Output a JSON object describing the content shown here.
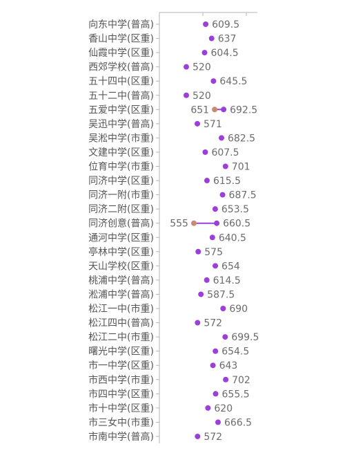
{
  "chart_data": {
    "type": "dumbbell",
    "title": "",
    "xlabel": "",
    "ylabel": "",
    "xlim": [
      500,
      720
    ],
    "grid": false,
    "legend": "none",
    "colors": {
      "current": "#9b3fdb",
      "previous": "#c98a73",
      "connector": "#9b3fdb"
    },
    "rows": [
      {
        "category": "向东中学(普高)",
        "value": 609.5,
        "value_label": "609.5"
      },
      {
        "category": "香山中学(区重)",
        "value": 637,
        "value_label": "637"
      },
      {
        "category": "仙霞中学(区重)",
        "value": 604.5,
        "value_label": "604.5"
      },
      {
        "category": "西郊学校(普高)",
        "value": 520,
        "value_label": "520"
      },
      {
        "category": "五十四中(区重)",
        "value": 645.5,
        "value_label": "645.5"
      },
      {
        "category": "五十二中(普高)",
        "value": 520,
        "value_label": "520"
      },
      {
        "category": "五爱中学(区重)",
        "value": 692.5,
        "value_label": "692.5",
        "prev_value": 651,
        "prev_label": "651"
      },
      {
        "category": "吴迅中学(普高)",
        "value": 571,
        "value_label": "571"
      },
      {
        "category": "吴淞中学(市重)",
        "value": 682.5,
        "value_label": "682.5"
      },
      {
        "category": "文建中学(区重)",
        "value": 607.5,
        "value_label": "607.5"
      },
      {
        "category": "位育中学(市重)",
        "value": 701,
        "value_label": "701"
      },
      {
        "category": "同济中学(区重)",
        "value": 615.5,
        "value_label": "615.5"
      },
      {
        "category": "同济一附(市重)",
        "value": 687.5,
        "value_label": "687.5"
      },
      {
        "category": "同济二附(区重)",
        "value": 653.5,
        "value_label": "653.5"
      },
      {
        "category": "同济创意(普高)",
        "value": 660.5,
        "value_label": "660.5",
        "prev_value": 555,
        "prev_label": "555"
      },
      {
        "category": "通河中学(区重)",
        "value": 640.5,
        "value_label": "640.5"
      },
      {
        "category": "亭林中学(区重)",
        "value": 575,
        "value_label": "575"
      },
      {
        "category": "天山学校(区重)",
        "value": 654,
        "value_label": "654"
      },
      {
        "category": "桃浦中学(普高)",
        "value": 614.5,
        "value_label": "614.5"
      },
      {
        "category": "淞浦中学(普高)",
        "value": 587.5,
        "value_label": "587.5"
      },
      {
        "category": "松江一中(市重)",
        "value": 690,
        "value_label": "690"
      },
      {
        "category": "松江四中(普高)",
        "value": 572,
        "value_label": "572"
      },
      {
        "category": "松江二中(市重)",
        "value": 699.5,
        "value_label": "699.5"
      },
      {
        "category": "曙光中学(区重)",
        "value": 654.5,
        "value_label": "654.5"
      },
      {
        "category": "市一中学(区重)",
        "value": 643,
        "value_label": "643"
      },
      {
        "category": "市西中学(市重)",
        "value": 702,
        "value_label": "702"
      },
      {
        "category": "市四中学(区重)",
        "value": 655.5,
        "value_label": "655.5"
      },
      {
        "category": "市十中学(区重)",
        "value": 620,
        "value_label": "620"
      },
      {
        "category": "市三女中(市重)",
        "value": 666.5,
        "value_label": "666.5"
      },
      {
        "category": "市南中学(普高)",
        "value": 572,
        "value_label": "572"
      }
    ]
  }
}
